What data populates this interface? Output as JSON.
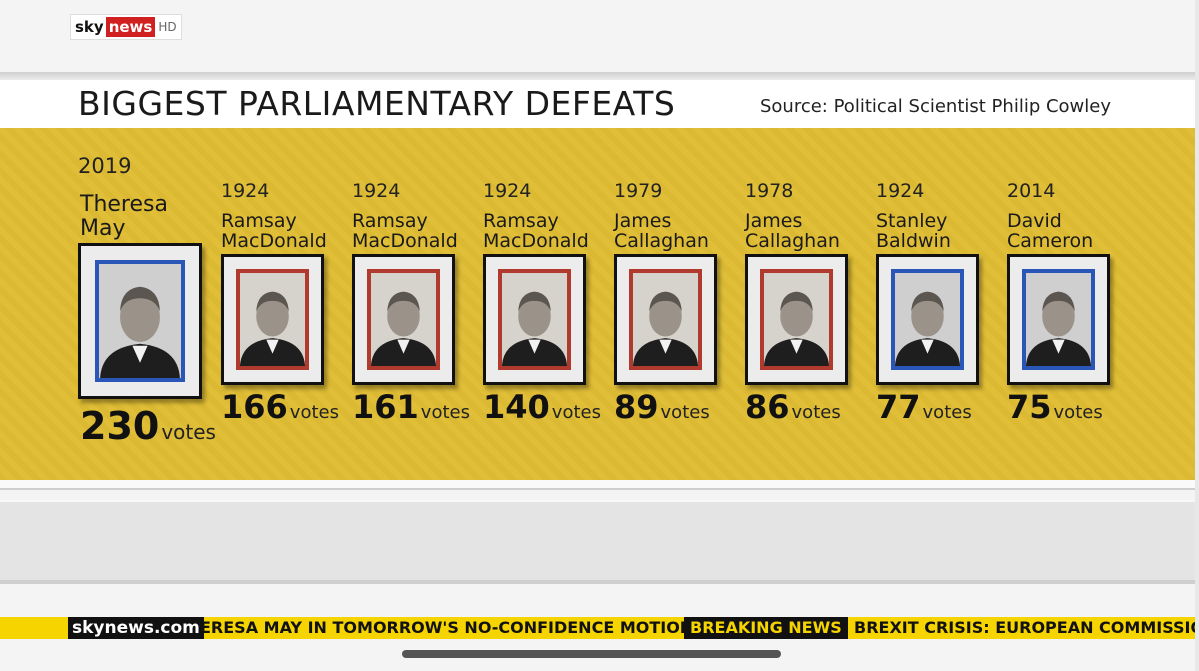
{
  "logo": {
    "sky": "sky",
    "news": "news",
    "hd": "HD"
  },
  "title": "BIGGEST PARLIAMENTARY DEFEATS",
  "source": "Source: Political Scientist Philip Cowley",
  "vote_unit": "votes",
  "colors": {
    "panel": "#e0bd33",
    "labour_frame": "#b03a2e",
    "conservative_frame": "#2a56b8",
    "ticker": "#f5d400"
  },
  "chart_data": {
    "type": "table",
    "title": "BIGGEST PARLIAMENTARY DEFEATS",
    "columns": [
      "year",
      "prime_minister",
      "defeat_votes"
    ],
    "rows": [
      {
        "year": "2019",
        "name": "Theresa May",
        "votes": 230,
        "frame": "blue"
      },
      {
        "year": "1924",
        "name": "Ramsay MacDonald",
        "votes": 166,
        "frame": "red"
      },
      {
        "year": "1924",
        "name": "Ramsay MacDonald",
        "votes": 161,
        "frame": "red"
      },
      {
        "year": "1924",
        "name": "Ramsay MacDonald",
        "votes": 140,
        "frame": "red"
      },
      {
        "year": "1979",
        "name": "James Callaghan",
        "votes": 89,
        "frame": "red"
      },
      {
        "year": "1978",
        "name": "James Callaghan",
        "votes": 86,
        "frame": "red"
      },
      {
        "year": "1924",
        "name": "Stanley Baldwin",
        "votes": 77,
        "frame": "blue"
      },
      {
        "year": "2014",
        "name": "David Cameron",
        "votes": 75,
        "frame": "blue"
      }
    ]
  },
  "ticker": {
    "site": "skynews.com",
    "text1": "ERESA MAY IN TOMORROW'S NO-CONFIDENCE MOTION",
    "breaking": "BREAKING NEWS",
    "text2": "BREXIT CRISIS: EUROPEAN COMMISSION"
  }
}
